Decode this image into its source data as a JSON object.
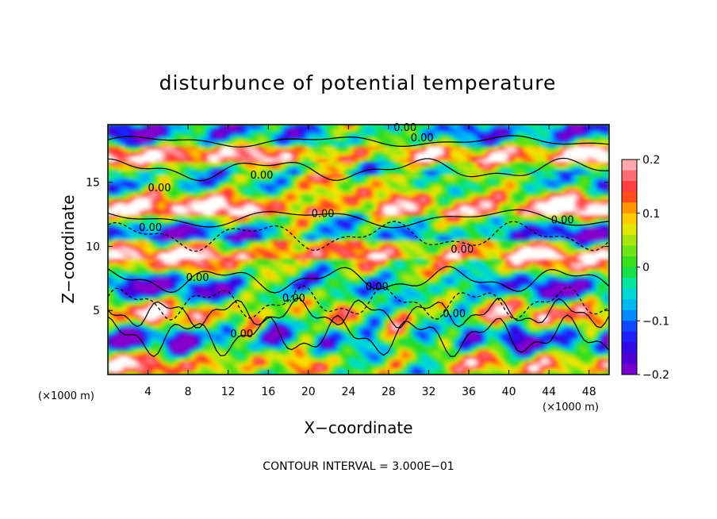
{
  "chart_data": {
    "type": "heatmap",
    "title": "disturbunce of potential temperature",
    "xlabel": "X−coordinate",
    "ylabel": "Z−coordinate",
    "x_unit": "(×1000 m)",
    "x_unit_right": "(×1000 m)",
    "x_ticks": [
      "4",
      "8",
      "12",
      "16",
      "20",
      "24",
      "28",
      "32",
      "36",
      "40",
      "44",
      "48"
    ],
    "x_tick_values": [
      4,
      8,
      12,
      16,
      20,
      24,
      28,
      32,
      36,
      40,
      44,
      48
    ],
    "xlim": [
      0,
      50
    ],
    "y_ticks": [
      "5",
      "10",
      "15"
    ],
    "y_tick_values": [
      5,
      10,
      15
    ],
    "ylim": [
      0,
      19.5
    ],
    "colorbar": {
      "ticks": [
        "0.2",
        "0.1",
        "0",
        "−0.1",
        "−0.2"
      ],
      "tick_values": [
        0.2,
        0.1,
        0,
        -0.1,
        -0.2
      ],
      "range": [
        -0.2,
        0.2
      ]
    },
    "contour_labels": [
      "0.00"
    ],
    "contour_interval_text": "CONTOUR INTERVAL = 3.000E−01",
    "grid": false,
    "colors": {
      "max": "#ffffff",
      "high": "#ff2a2a",
      "mid": "#22dd22",
      "low": "#2244ff",
      "min": "#8800cc"
    }
  }
}
